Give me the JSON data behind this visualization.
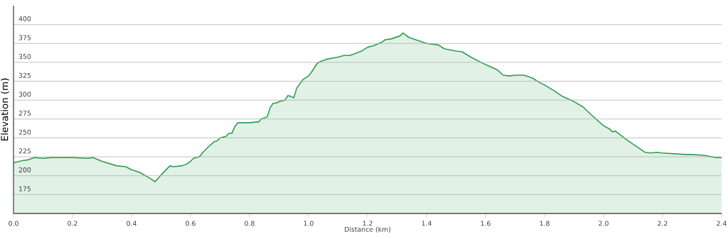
{
  "chart_data": {
    "type": "area",
    "xlabel": "Distance  (km)",
    "ylabel": "Elevation (m)",
    "xlim": [
      0,
      2.4
    ],
    "ylim": [
      150,
      425
    ],
    "xticks": [
      {
        "value": 0,
        "label": "0.0"
      },
      {
        "value": 0.2,
        "label": "0.2"
      },
      {
        "value": 0.4,
        "label": "0.4"
      },
      {
        "value": 0.6,
        "label": "0.6"
      },
      {
        "value": 0.8,
        "label": "0.8"
      },
      {
        "value": 1.0,
        "label": "1.0"
      },
      {
        "value": 1.2,
        "label": "1.2"
      },
      {
        "value": 1.4,
        "label": "1.4"
      },
      {
        "value": 1.6,
        "label": "1.6"
      },
      {
        "value": 1.8,
        "label": "1.8"
      },
      {
        "value": 2.0,
        "label": "2.0"
      },
      {
        "value": 2.2,
        "label": "2.2"
      },
      {
        "value": 2.4,
        "label": "2.4"
      }
    ],
    "yticks": [
      175,
      200,
      225,
      250,
      275,
      300,
      325,
      350,
      375,
      400
    ],
    "grid": "y",
    "marker": "none",
    "line_style": "solid",
    "x": [
      0.0,
      0.01,
      0.03,
      0.05,
      0.07,
      0.1,
      0.13,
      0.2,
      0.25,
      0.27,
      0.3,
      0.35,
      0.38,
      0.4,
      0.43,
      0.46,
      0.48,
      0.5,
      0.53,
      0.54,
      0.57,
      0.59,
      0.6,
      0.61,
      0.63,
      0.64,
      0.66,
      0.68,
      0.69,
      0.7,
      0.72,
      0.73,
      0.74,
      0.75,
      0.76,
      0.8,
      0.82,
      0.83,
      0.84,
      0.86,
      0.87,
      0.88,
      0.89,
      0.9,
      0.92,
      0.93,
      0.94,
      0.95,
      0.96,
      0.98,
      1.0,
      1.01,
      1.03,
      1.04,
      1.06,
      1.1,
      1.12,
      1.14,
      1.18,
      1.2,
      1.22,
      1.25,
      1.26,
      1.28,
      1.31,
      1.32,
      1.34,
      1.37,
      1.4,
      1.44,
      1.46,
      1.5,
      1.52,
      1.55,
      1.6,
      1.64,
      1.66,
      1.68,
      1.7,
      1.73,
      1.76,
      1.78,
      1.8,
      1.83,
      1.86,
      1.9,
      1.93,
      1.96,
      2.0,
      2.02,
      2.03,
      2.04,
      2.08,
      2.11,
      2.14,
      2.16,
      2.18,
      2.2,
      2.28,
      2.3,
      2.34,
      2.38,
      2.4
    ],
    "series": [
      {
        "color": "#2e9e4e",
        "values": [
          217,
          218,
          220,
          221,
          224,
          223,
          224,
          224,
          223,
          224,
          219,
          213,
          212,
          208,
          204,
          197,
          192,
          201,
          213,
          212,
          213,
          216,
          219,
          223,
          225,
          230,
          238,
          245,
          246,
          250,
          252,
          256,
          256,
          265,
          270,
          270,
          271,
          271,
          275,
          278,
          290,
          296,
          296,
          298,
          300,
          306,
          305,
          303,
          316,
          327,
          332,
          337,
          349,
          351,
          354,
          357,
          359,
          359,
          365,
          370,
          372,
          377,
          380,
          381,
          385,
          389,
          383,
          379,
          375,
          373,
          368,
          365,
          364,
          357,
          347,
          340,
          333,
          332,
          333,
          333,
          329,
          324,
          320,
          313,
          305,
          298,
          291,
          280,
          266,
          262,
          258,
          259,
          247,
          239,
          231,
          230,
          231,
          230,
          228,
          228,
          227,
          224,
          224
        ]
      }
    ]
  }
}
